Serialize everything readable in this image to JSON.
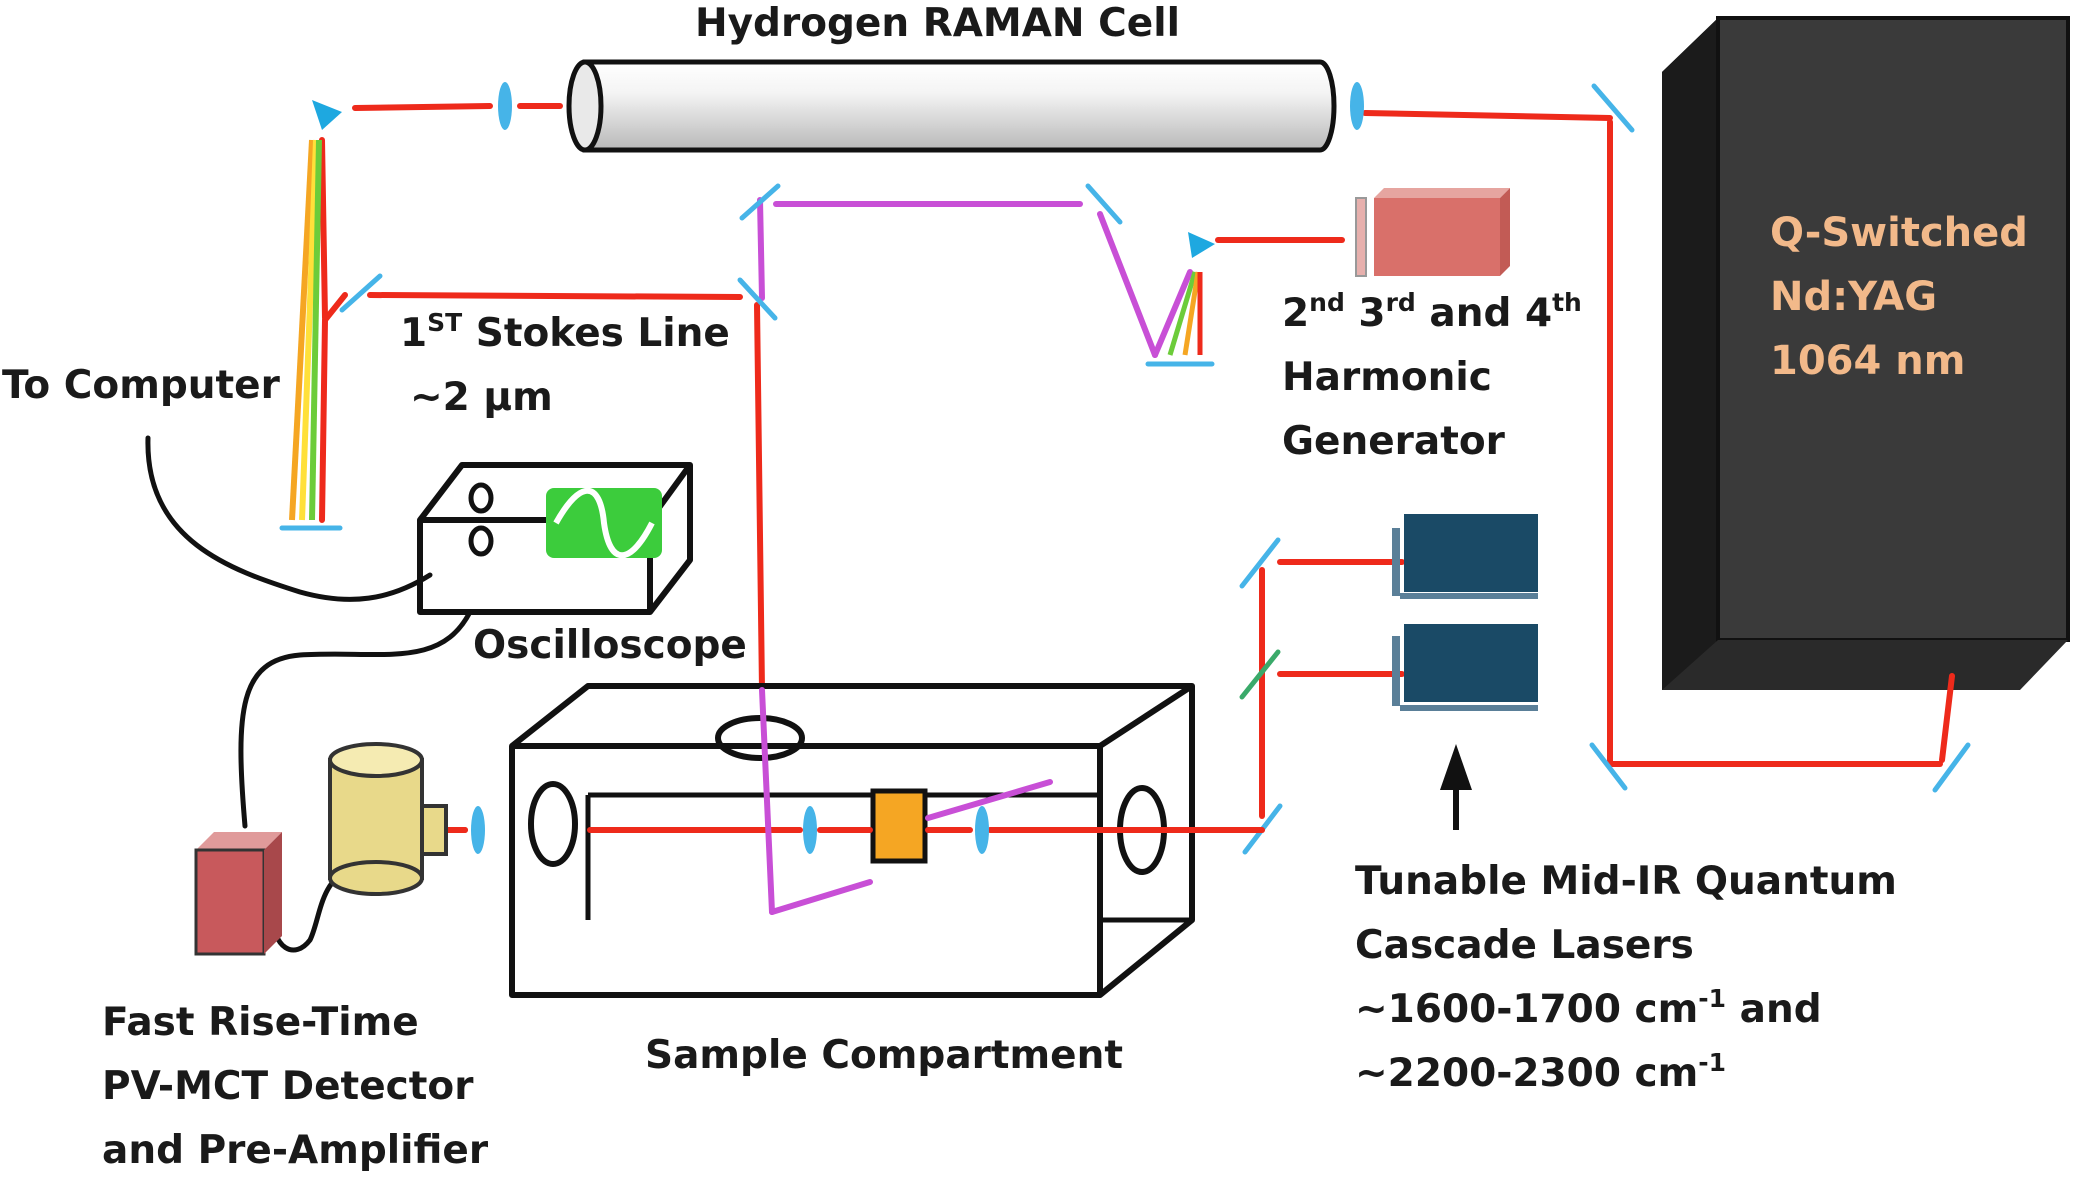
{
  "labels": {
    "raman_cell": "Hydrogen RAMAN Cell",
    "stokes_line_1_main": "1",
    "stokes_line_1_sup": "ST",
    "stokes_line_1_rest": " Stokes Line",
    "stokes_line_2": "~2 µm",
    "to_computer": "To Computer",
    "oscilloscope": "Oscilloscope",
    "harmonic_2": "2",
    "harmonic_2_sup": "nd",
    "harmonic_3": "3",
    "harmonic_3_sup": "rd",
    "harmonic_and": "and 4",
    "harmonic_4_sup": "th",
    "harmonic_line_2": "Harmonic",
    "harmonic_line_3": "Generator",
    "laser_line_1": "Q-Switched",
    "laser_line_2": "Nd:YAG",
    "laser_line_3": "1064 nm",
    "qcl_line_1": "Tunable Mid-IR Quantum",
    "qcl_line_2": "Cascade Lasers",
    "qcl_line_3a": "~1600-1700 cm",
    "qcl_line_3sup": "-1",
    "qcl_line_3b": " and",
    "qcl_line_4a": "~2200-2300 cm",
    "qcl_line_4sup": "-1",
    "detector_line_1": "Fast Rise-Time",
    "detector_line_2": "PV-MCT Detector",
    "detector_line_3": "and Pre-Amplifier",
    "sample_compartment": "Sample Compartment"
  },
  "colors": {
    "laser_beam": "#ee2a1b",
    "harmonic_beam": "#c84fd6",
    "optics": "#46b4e8",
    "laser_body": "#3a3a3a",
    "qcl_body": "#1a4a66",
    "harmonic_generator": "#d9706a",
    "detector_amp": "#c8595c",
    "detector_head": "#e8d98a",
    "sample": "#f5a623",
    "screen": "#3ccc3c",
    "laser_text": "#f2b98a"
  },
  "icons": [
    "prism-icon",
    "lens-icon",
    "mirror-icon",
    "oscilloscope-icon",
    "detector-icon",
    "arrow-up-icon"
  ]
}
